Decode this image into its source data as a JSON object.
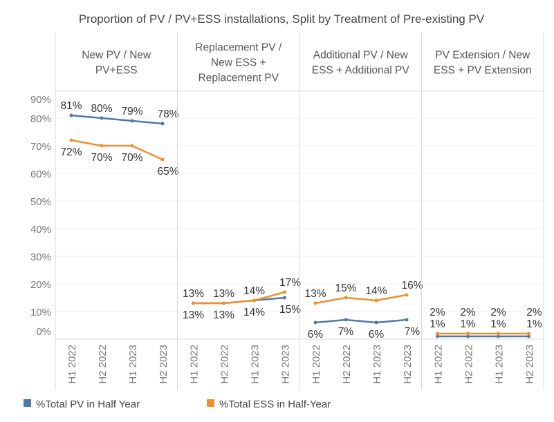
{
  "chart_data": {
    "type": "line",
    "title": "Proportion of PV / PV+ESS installations, Split by Treatment of Pre-existing PV",
    "categories": [
      "H1 2022",
      "H2 2022",
      "H1 2023",
      "H2 2023"
    ],
    "yticks": [
      "0%",
      "10%",
      "20%",
      "30%",
      "40%",
      "50%",
      "60%",
      "70%",
      "80%",
      "90%"
    ],
    "ylim": [
      0,
      90
    ],
    "grid": true,
    "legend_position": "bottom",
    "colors": {
      "pv": "#4e79a7",
      "ess": "#f28e2b"
    },
    "series_names": [
      "%Total PV in Half Year",
      "%Total ESS in Half-Year"
    ],
    "panels": [
      {
        "header": [
          "New PV / New",
          "PV+ESS"
        ],
        "pv": [
          81,
          80,
          79,
          78
        ],
        "ess": [
          72,
          70,
          70,
          65
        ]
      },
      {
        "header": [
          "Replacement PV /",
          "New ESS +",
          "Replacement PV"
        ],
        "pv": [
          13,
          13,
          14,
          15
        ],
        "ess": [
          13,
          13,
          14,
          17
        ]
      },
      {
        "header": [
          "Additional PV / New",
          "ESS + Additional PV"
        ],
        "pv": [
          6,
          7,
          6,
          7
        ],
        "ess": [
          13,
          15,
          14,
          16
        ]
      },
      {
        "header": [
          "PV Extension / New",
          "ESS + PV Extension"
        ],
        "pv": [
          1,
          1,
          1,
          1
        ],
        "ess": [
          2,
          2,
          2,
          2
        ]
      }
    ]
  }
}
